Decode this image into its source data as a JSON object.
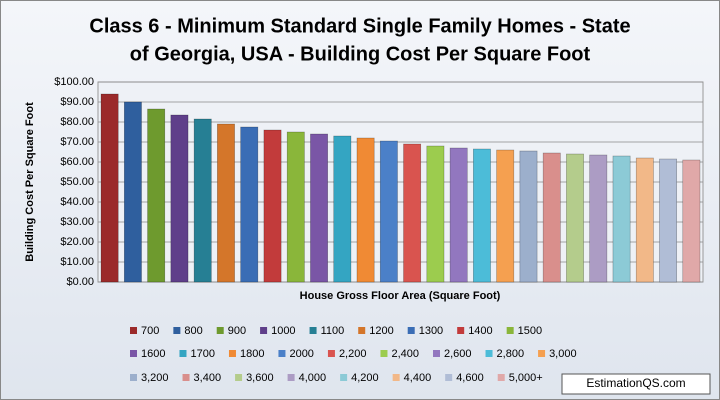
{
  "chart_data": {
    "type": "bar",
    "title": [
      "Class 6 - Minimum Standard Single Family Homes  - State",
      "of Georgia, USA  - Building Cost Per Square Foot"
    ],
    "x_label": "House Gross Floor Area (Square Foot)",
    "y_label": "Building Cost Per Square Foot",
    "watermark": "EstimationQS.com",
    "categories": [
      "700",
      "800",
      "900",
      "1000",
      "1100",
      "1200",
      "1300",
      "1400",
      "1500",
      "1600",
      "1700",
      "1800",
      "2000",
      "2,200",
      "2,400",
      "2,600",
      "2,800",
      "3,000",
      "3,200",
      "3,400",
      "3,600",
      "4,000",
      "4,200",
      "4,400",
      "4,600",
      "5,000+"
    ],
    "values": [
      94,
      90,
      86.5,
      83.5,
      81.5,
      79,
      77.5,
      76,
      75,
      74,
      73,
      72,
      70.5,
      69,
      68,
      67,
      66.5,
      66,
      65.5,
      64.5,
      64,
      63.5,
      63,
      62,
      61.5,
      61
    ],
    "colors": [
      "#9b2a2a",
      "#2f5f9e",
      "#6e9a2e",
      "#5f3f8a",
      "#267f94",
      "#d4762a",
      "#3a6db5",
      "#c23b3b",
      "#8ab63a",
      "#7a56a6",
      "#34a5c2",
      "#f08a34",
      "#4b80c8",
      "#d9544f",
      "#9ccc4e",
      "#9277bf",
      "#4cbcd8",
      "#f5a050",
      "#9cafcc",
      "#d98f8c",
      "#b4cc8c",
      "#ac9cc4",
      "#8ccad6",
      "#f2b888",
      "#b0bdd6",
      "#e0a8a8"
    ],
    "ylim": [
      0,
      100
    ],
    "yticks": [
      {
        "value": 0,
        "label": "$0.00"
      },
      {
        "value": 10,
        "label": "$10.00"
      },
      {
        "value": 20,
        "label": "$20.00"
      },
      {
        "value": 30,
        "label": "$30.00"
      },
      {
        "value": 40,
        "label": "$40.00"
      },
      {
        "value": 50,
        "label": "$50.00"
      },
      {
        "value": 60,
        "label": "$60.00"
      },
      {
        "value": 70,
        "label": "$70.00"
      },
      {
        "value": 80,
        "label": "$80.00"
      },
      {
        "value": 90,
        "label": "$90.00"
      },
      {
        "value": 100,
        "label": "$100.00"
      }
    ],
    "grid": true
  }
}
